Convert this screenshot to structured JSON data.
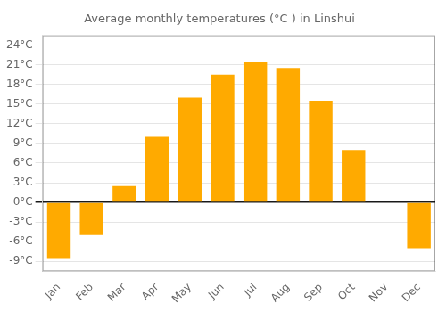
{
  "chart_data": {
    "type": "bar",
    "title": "Average monthly temperatures (°C ) in Linshui",
    "categories": [
      "Jan",
      "Feb",
      "Mar",
      "Apr",
      "May",
      "Jun",
      "Jul",
      "Aug",
      "Sep",
      "Oct",
      "Nov",
      "Dec"
    ],
    "values": [
      -8.5,
      -5.0,
      2.5,
      10.0,
      16.0,
      19.5,
      21.5,
      20.5,
      15.5,
      8.0,
      0.0,
      -7.0
    ],
    "color": "#FFAA00",
    "ylim": [
      -10.5,
      25.5
    ],
    "yticks": [
      {
        "value": -9,
        "label": "-9°C"
      },
      {
        "value": -6,
        "label": "-6°C"
      },
      {
        "value": -3,
        "label": "-3°C"
      },
      {
        "value": 0,
        "label": "0°C"
      },
      {
        "value": 3,
        "label": "3°C"
      },
      {
        "value": 6,
        "label": "6°C"
      },
      {
        "value": 9,
        "label": "9°C"
      },
      {
        "value": 12,
        "label": "12°C"
      },
      {
        "value": 15,
        "label": "15°C"
      },
      {
        "value": 18,
        "label": "18°C"
      },
      {
        "value": 21,
        "label": "21°C"
      },
      {
        "value": 24,
        "label": "24°C"
      }
    ],
    "grid": true
  }
}
